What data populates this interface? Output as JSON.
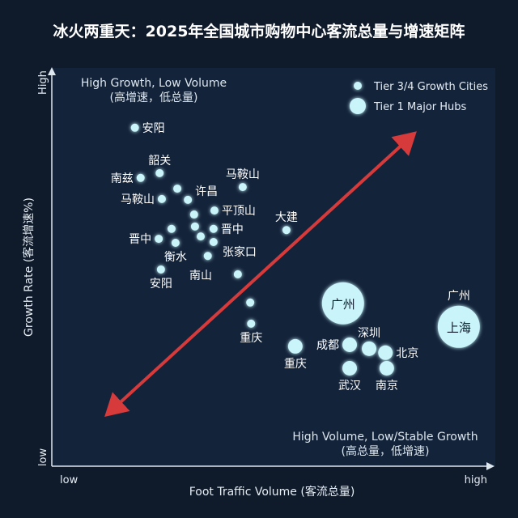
{
  "chart_data": {
    "type": "scatter",
    "title": "冰火两重天：2025年全国城市购物中心客流总量与增速矩阵",
    "xlabel": "Foot Traffic Volume (客流总量)",
    "ylabel": "Growth Rate (客流增速%)",
    "x_ticks": {
      "low": "low",
      "high": "high"
    },
    "y_ticks": {
      "low": "low",
      "high": "High"
    },
    "xlim": [
      0,
      100
    ],
    "ylim": [
      0,
      100
    ],
    "x_split": 50,
    "y_split": 51,
    "quadrants": {
      "top_left": {
        "line1": "High Growth, Low Volume",
        "line2": "(高增速，低总量)"
      },
      "bottom_right": {
        "line1": "High Volume, Low/Stable Growth",
        "line2": "(高总量，低增速)"
      }
    },
    "legend": {
      "placement": "top-right",
      "entries": [
        {
          "label": "Tier 3/4 Growth Cities",
          "bubble": 1
        },
        {
          "label": "Tier 1 Major Hubs",
          "bubble": 3
        }
      ]
    },
    "trend_arrow": {
      "from": [
        13,
        13.5
      ],
      "to": [
        81.5,
        83
      ],
      "color": "#d63a3a",
      "double_headed": true
    },
    "colors": {
      "background": "#0f1a2a",
      "plot": "#13233a",
      "grid": "#6fe3f0",
      "point": "#c8f4fa",
      "arrow": "#d63a3a"
    },
    "points": [
      {
        "name": "安阳",
        "x": 18.8,
        "y": 85,
        "bubble": 1,
        "label_pos": "right"
      },
      {
        "name": "韶关",
        "x": 24.4,
        "y": 73.6,
        "bubble": 1,
        "label_pos": "above"
      },
      {
        "name": "南兹",
        "x": 20.1,
        "y": 72.4,
        "bubble": 1,
        "label_pos": "left"
      },
      {
        "name": "",
        "x": 28.4,
        "y": 69.7,
        "bubble": 1,
        "label_pos": "none"
      },
      {
        "name": "马鞍山",
        "x": 24.9,
        "y": 67.1,
        "bubble": 1,
        "label_pos": "left"
      },
      {
        "name": "许昌",
        "x": 30.8,
        "y": 66.9,
        "bubble": 1,
        "label_pos": "above-right"
      },
      {
        "name": "马鞍山",
        "x": 43.2,
        "y": 70.1,
        "bubble": 1,
        "label_pos": "above"
      },
      {
        "name": "",
        "x": 32.2,
        "y": 63.2,
        "bubble": 1,
        "label_pos": "none"
      },
      {
        "name": "平顶山",
        "x": 36.8,
        "y": 64.2,
        "bubble": 1,
        "label_pos": "right"
      },
      {
        "name": "",
        "x": 32.4,
        "y": 60.2,
        "bubble": 1,
        "label_pos": "none"
      },
      {
        "name": "晋中",
        "x": 36.6,
        "y": 59.6,
        "bubble": 1,
        "label_pos": "right"
      },
      {
        "name": "",
        "x": 27.1,
        "y": 59.6,
        "bubble": 1,
        "label_pos": "none"
      },
      {
        "name": "晋中",
        "x": 24.2,
        "y": 57.1,
        "bubble": 1,
        "label_pos": "left"
      },
      {
        "name": "衡水",
        "x": 28,
        "y": 56.1,
        "bubble": 1,
        "label_pos": "below"
      },
      {
        "name": "南山",
        "x": 33.7,
        "y": 57.7,
        "bubble": 1,
        "label_pos": "far-below"
      },
      {
        "name": "张家口",
        "x": 36.6,
        "y": 56.3,
        "bubble": 1,
        "label_pos": "below-right"
      },
      {
        "name": "",
        "x": 35.3,
        "y": 52.8,
        "bubble": 1,
        "label_pos": "none"
      },
      {
        "name": "安阳",
        "x": 24.7,
        "y": 49.4,
        "bubble": 1,
        "label_pos": "below"
      },
      {
        "name": "",
        "x": 42.1,
        "y": 48.2,
        "bubble": 1,
        "label_pos": "none"
      },
      {
        "name": "",
        "x": 44.9,
        "y": 41.1,
        "bubble": 1,
        "label_pos": "none"
      },
      {
        "name": "重庆",
        "x": 45.1,
        "y": 35.8,
        "bubble": 1,
        "label_pos": "below"
      },
      {
        "name": "大建",
        "x": 53.1,
        "y": 59.3,
        "bubble": 1,
        "label_pos": "above"
      },
      {
        "name": "广州",
        "x": 65.9,
        "y": 40.9,
        "bubble": 3,
        "label_pos": "inside"
      },
      {
        "name": "上海",
        "x": 92.1,
        "y": 35,
        "bubble": 3,
        "label_pos": "inside",
        "extra_label": "广州"
      },
      {
        "name": "重庆",
        "x": 55.1,
        "y": 30.1,
        "bubble": 2,
        "label_pos": "below"
      },
      {
        "name": "成都",
        "x": 67.4,
        "y": 30.5,
        "bubble": 2,
        "label_pos": "left"
      },
      {
        "name": "深圳",
        "x": 71.8,
        "y": 29.5,
        "bubble": 2,
        "label_pos": "above"
      },
      {
        "name": "北京",
        "x": 75.5,
        "y": 28.5,
        "bubble": 2,
        "label_pos": "right"
      },
      {
        "name": "武汉",
        "x": 67.4,
        "y": 24.6,
        "bubble": 2,
        "label_pos": "below"
      },
      {
        "name": "南京",
        "x": 75.8,
        "y": 24.6,
        "bubble": 2,
        "label_pos": "below"
      }
    ]
  }
}
